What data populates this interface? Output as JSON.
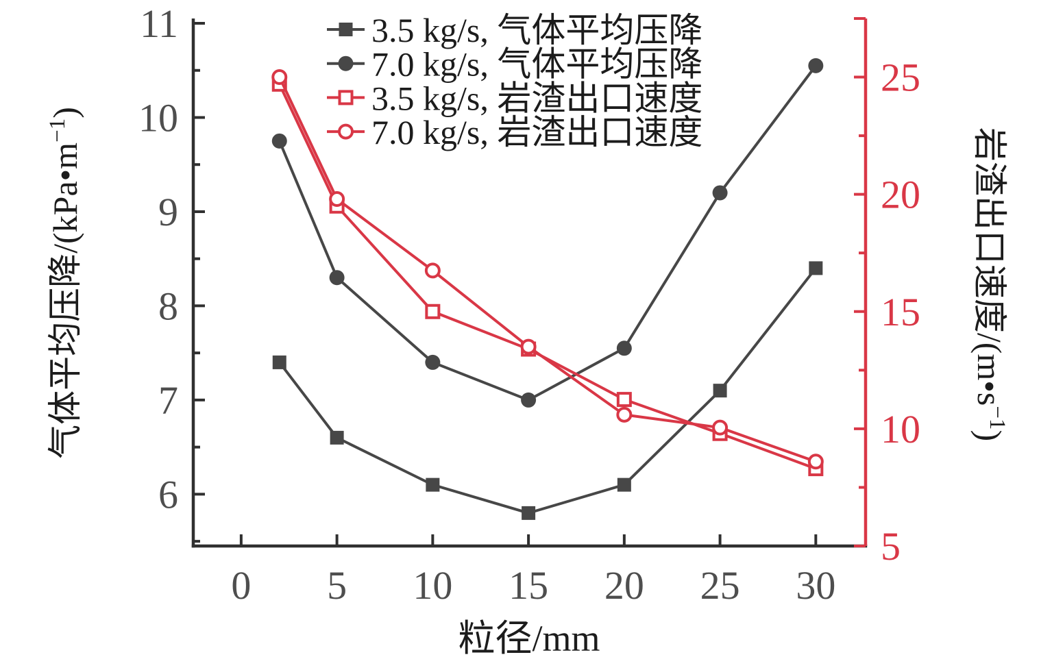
{
  "chart_data": {
    "type": "line",
    "title": "",
    "xlabel": "粒径/mm",
    "ylabel_left": {
      "pre": "气体平均压降/(kPa•m",
      "sup": "−1",
      "post": ")"
    },
    "ylabel_right": {
      "pre": "岩渣出口速度/(m•s",
      "sup": "−1",
      "post": ")"
    },
    "xlim": [
      -2.5,
      32.6
    ],
    "ylim_left": [
      5.45,
      11.0
    ],
    "ylim_right": [
      5,
      27.5
    ],
    "x_ticks": [
      0,
      5,
      10,
      15,
      20,
      25,
      30
    ],
    "left_ticks": [
      6,
      7,
      8,
      9,
      10,
      11
    ],
    "left_minor_ticks": [
      5.5,
      6.5,
      7.5,
      8.5,
      9.5,
      10.5
    ],
    "right_ticks": [
      5,
      10,
      15,
      20,
      25
    ],
    "right_minor_ticks": [
      7.5,
      12.5,
      17.5,
      22.5
    ],
    "right_end_tick": 27.5,
    "grid": false,
    "legend_position": "top-center",
    "x": [
      2,
      5,
      10,
      15,
      20,
      25,
      30
    ],
    "series": [
      {
        "name": "3.5 kg/s, 气体平均压降",
        "axis": "left",
        "color": "#474747",
        "marker": "square-filled",
        "values": [
          7.4,
          6.6,
          6.1,
          5.8,
          6.1,
          7.1,
          8.4
        ]
      },
      {
        "name": "7.0 kg/s, 气体平均压降",
        "axis": "left",
        "color": "#474747",
        "marker": "circle-filled",
        "values": [
          9.75,
          8.3,
          7.4,
          7.0,
          7.55,
          9.2,
          10.55
        ]
      },
      {
        "name": "3.5 kg/s, 岩渣出口速度",
        "axis": "right",
        "color": "#D93746",
        "marker": "square-open",
        "values": [
          24.7,
          19.5,
          15.0,
          13.4,
          11.25,
          9.8,
          8.3
        ]
      },
      {
        "name": "7.0 kg/s, 岩渣出口速度",
        "axis": "right",
        "color": "#D93746",
        "marker": "circle-open",
        "values": [
          25.0,
          19.8,
          16.75,
          13.5,
          10.6,
          10.05,
          8.6
        ]
      }
    ]
  },
  "colors": {
    "background": "#ffffff",
    "dark_series": "#474747",
    "red_series": "#D93746",
    "axis_line": "#303030",
    "tick_label": "#4E4E4E",
    "legend_text": "#1C1C1C"
  }
}
